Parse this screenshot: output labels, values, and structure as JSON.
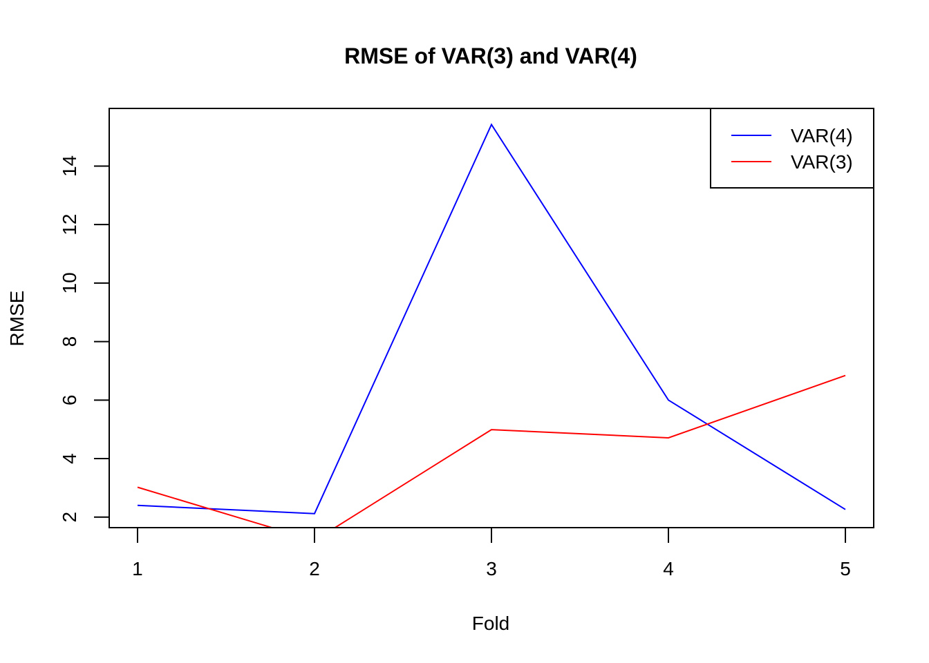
{
  "chart_data": {
    "type": "line",
    "title": "RMSE of VAR(3) and VAR(4)",
    "xlabel": "Fold",
    "ylabel": "RMSE",
    "x": [
      1,
      2,
      3,
      4,
      5
    ],
    "xlim": [
      0.84,
      5.16
    ],
    "ylim": [
      1.64,
      15.97
    ],
    "xticks": [
      "1",
      "2",
      "3",
      "4",
      "5"
    ],
    "yticks": [
      "2",
      "4",
      "6",
      "8",
      "10",
      "12",
      "14"
    ],
    "grid": false,
    "legend_position": "top-right",
    "series": [
      {
        "name": "VAR(4)",
        "color": "#0000ff",
        "values": [
          2.4,
          2.12,
          15.42,
          6.0,
          2.26
        ]
      },
      {
        "name": "VAR(3)",
        "color": "#ff0000",
        "values": [
          3.02,
          1.2,
          4.99,
          4.71,
          6.84
        ]
      }
    ]
  }
}
